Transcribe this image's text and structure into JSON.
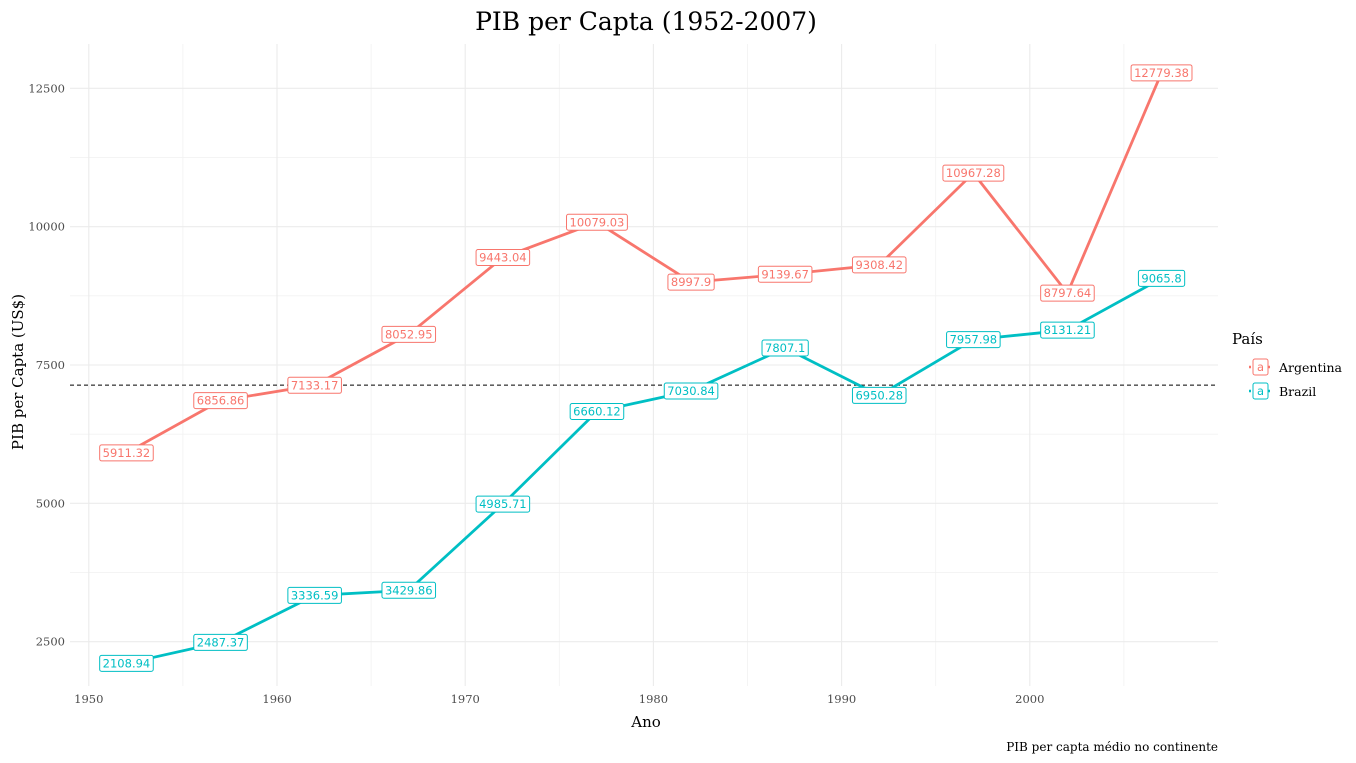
{
  "chart_data": {
    "type": "line",
    "title": "PIB per Capta (1952-2007)",
    "xlabel": "Ano",
    "ylabel": "PIB per Capta (US$)",
    "caption": "PIB per capta médio no continente",
    "xlim": [
      1949,
      2010
    ],
    "ylim": [
      1700,
      13300
    ],
    "x_ticks": [
      1950,
      1960,
      1970,
      1980,
      1990,
      2000
    ],
    "y_ticks": [
      2500,
      5000,
      7500,
      10000,
      12500
    ],
    "grid": true,
    "reference_line": {
      "y": 7136,
      "style": "dashed"
    },
    "x": [
      1952,
      1957,
      1962,
      1967,
      1972,
      1977,
      1982,
      1987,
      1992,
      1997,
      2002,
      2007
    ],
    "series": [
      {
        "name": "Argentina",
        "color": "#F8766D",
        "values": [
          5911.32,
          6856.86,
          7133.17,
          8052.95,
          9443.04,
          10079.03,
          8997.9,
          9139.67,
          9308.42,
          10967.28,
          8797.64,
          12779.38
        ],
        "labels": [
          "5911.32",
          "6856.86",
          "7133.17",
          "8052.95",
          "9443.04",
          "10079.03",
          "8997.9",
          "9139.67",
          "9308.42",
          "10967.28",
          "8797.64",
          "12779.38"
        ]
      },
      {
        "name": "Brazil",
        "color": "#00BFC4",
        "values": [
          2108.94,
          2487.37,
          3336.59,
          3429.86,
          4985.71,
          6660.12,
          7030.84,
          7807.1,
          6950.28,
          7957.98,
          8131.21,
          9065.8
        ],
        "labels": [
          "2108.94",
          "2487.37",
          "3336.59",
          "3429.86",
          "4985.71",
          "6660.12",
          "7030.84",
          "7807.1",
          "6950.28",
          "7957.98",
          "8131.21",
          "9065.8"
        ]
      }
    ],
    "legend": {
      "title": "País",
      "placement": "right",
      "key_glyph": "a"
    }
  }
}
